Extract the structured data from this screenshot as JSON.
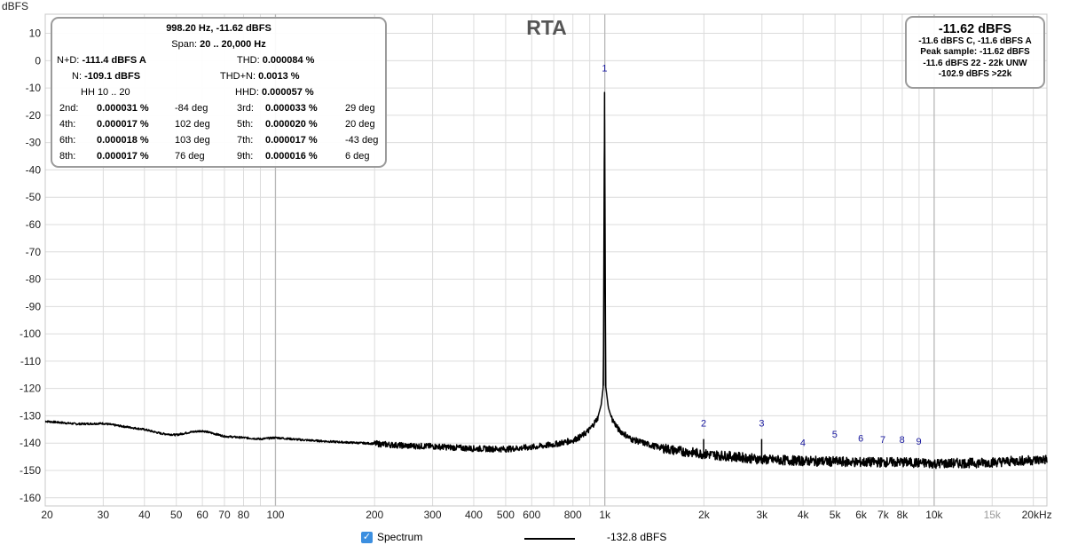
{
  "chart_data": {
    "type": "line",
    "title": "RTA",
    "ylabel": "dBFS",
    "xscale": "log",
    "xlim": [
      20,
      22000
    ],
    "ylim": [
      -163,
      17
    ],
    "grid": true,
    "y_ticks": [
      10,
      0,
      -10,
      -20,
      -30,
      -40,
      -50,
      -60,
      -70,
      -80,
      -90,
      -100,
      -110,
      -120,
      -130,
      -140,
      -150,
      -160
    ],
    "x_ticks": [
      {
        "v": 20,
        "label": "20"
      },
      {
        "v": 30,
        "label": "30"
      },
      {
        "v": 40,
        "label": "40"
      },
      {
        "v": 50,
        "label": "50"
      },
      {
        "v": 60,
        "label": "60"
      },
      {
        "v": 70,
        "label": "70"
      },
      {
        "v": 80,
        "label": "80"
      },
      {
        "v": 100,
        "label": "100"
      },
      {
        "v": 200,
        "label": "200"
      },
      {
        "v": 300,
        "label": "300"
      },
      {
        "v": 400,
        "label": "400"
      },
      {
        "v": 500,
        "label": "500"
      },
      {
        "v": 600,
        "label": "600"
      },
      {
        "v": 800,
        "label": "800"
      },
      {
        "v": 1000,
        "label": "1k"
      },
      {
        "v": 2000,
        "label": "2k"
      },
      {
        "v": 3000,
        "label": "3k"
      },
      {
        "v": 4000,
        "label": "4k"
      },
      {
        "v": 5000,
        "label": "5k"
      },
      {
        "v": 6000,
        "label": "6k"
      },
      {
        "v": 7000,
        "label": "7k"
      },
      {
        "v": 8000,
        "label": "8k"
      },
      {
        "v": 10000,
        "label": "10k"
      },
      {
        "v": 15000,
        "label": "15k",
        "minor": true
      },
      {
        "v": 20000,
        "label": "20kHz"
      }
    ],
    "minor_grid_x": [
      90,
      700,
      900,
      9000
    ],
    "major_grid_x": [
      100,
      1000,
      10000
    ],
    "series": [
      {
        "name": "Spectrum",
        "color": "#000000",
        "floor": [
          [
            20,
            -132
          ],
          [
            25,
            -133
          ],
          [
            30,
            -132.8
          ],
          [
            35,
            -134
          ],
          [
            40,
            -135
          ],
          [
            45,
            -136.5
          ],
          [
            50,
            -137
          ],
          [
            55,
            -136
          ],
          [
            60,
            -135.5
          ],
          [
            65,
            -136.5
          ],
          [
            70,
            -137.5
          ],
          [
            80,
            -138
          ],
          [
            90,
            -138.5
          ],
          [
            100,
            -138
          ],
          [
            120,
            -138.8
          ],
          [
            150,
            -139.5
          ],
          [
            200,
            -140.2
          ],
          [
            250,
            -141
          ],
          [
            300,
            -141.2
          ],
          [
            400,
            -142
          ],
          [
            500,
            -142.2
          ],
          [
            600,
            -141.5
          ],
          [
            700,
            -140.5
          ],
          [
            800,
            -139
          ],
          [
            850,
            -137.5
          ],
          [
            900,
            -135
          ],
          [
            950,
            -131
          ],
          [
            975,
            -126
          ],
          [
            990,
            -119
          ],
          [
            998.2,
            -11.62
          ],
          [
            1006,
            -119
          ],
          [
            1025,
            -127
          ],
          [
            1050,
            -131
          ],
          [
            1100,
            -135
          ],
          [
            1200,
            -138.5
          ],
          [
            1400,
            -141
          ],
          [
            1600,
            -142.5
          ],
          [
            2000,
            -144
          ],
          [
            2500,
            -145
          ],
          [
            3000,
            -146
          ],
          [
            4000,
            -146.5
          ],
          [
            6000,
            -147
          ],
          [
            8000,
            -147
          ],
          [
            10000,
            -147.5
          ],
          [
            14000,
            -147.2
          ],
          [
            18000,
            -146.5
          ],
          [
            22000,
            -146
          ]
        ],
        "harmonic_spurs": [
          [
            1996,
            -138.5
          ],
          [
            2994,
            -138.5
          ],
          [
            3993,
            -145.5
          ],
          [
            4991,
            -145.5
          ],
          [
            5989,
            -146.5
          ],
          [
            6987,
            -147
          ],
          [
            7986,
            -147.2
          ],
          [
            8984,
            -147.3
          ]
        ]
      }
    ],
    "harmonic_markers": [
      {
        "label": "1",
        "freq": 998.2,
        "db": -4
      },
      {
        "label": "2",
        "freq": 1996,
        "db": -134
      },
      {
        "label": "3",
        "freq": 2994,
        "db": -134
      },
      {
        "label": "4",
        "freq": 3993,
        "db": -141
      },
      {
        "label": "5",
        "freq": 4991,
        "db": -138
      },
      {
        "label": "6",
        "freq": 5989,
        "db": -139.5
      },
      {
        "label": "7",
        "freq": 6987,
        "db": -140
      },
      {
        "label": "8",
        "freq": 7986,
        "db": -140
      },
      {
        "label": "9",
        "freq": 8984,
        "db": -140.5
      }
    ]
  },
  "stats": {
    "header": "998.20 Hz, -11.62 dBFS",
    "span_label": "Span:",
    "span_value": "20 .. 20,000 Hz",
    "nd_label": "N+D:",
    "nd_value": "-111.4 dBFS A",
    "thd_label": "THD:",
    "thd_value": "0.000084 %",
    "n_label": "N:",
    "n_value": "-109.1 dBFS",
    "thdn_label": "THD+N:",
    "thdn_value": "0.0013 %",
    "hh_label": "HH 10 .. 20",
    "hhd_label": "HHD:",
    "hhd_value": "0.000057 %",
    "harmonics": [
      {
        "l1": "2nd:",
        "v1": "0.000031 %",
        "d1": "-84 deg",
        "l2": "3rd:",
        "v2": "0.000033 %",
        "d2": "29 deg"
      },
      {
        "l1": "4th:",
        "v1": "0.000017 %",
        "d1": "102 deg",
        "l2": "5th:",
        "v2": "0.000020 %",
        "d2": "20 deg"
      },
      {
        "l1": "6th:",
        "v1": "0.000018 %",
        "d1": "103 deg",
        "l2": "7th:",
        "v2": "0.000017 %",
        "d2": "-43 deg"
      },
      {
        "l1": "8th:",
        "v1": "0.000017 %",
        "d1": "76 deg",
        "l2": "9th:",
        "v2": "0.000016 %",
        "d2": "6 deg"
      }
    ]
  },
  "level_box": {
    "big": "-11.62 dBFS",
    "lines": [
      "-11.6 dBFS C, -11.6 dBFS A",
      "Peak sample: -11.62 dBFS",
      "-11.6 dBFS 22 - 22k UNW",
      "-102.9 dBFS >22k"
    ]
  },
  "legend": {
    "checkbox_checked": true,
    "checkbox_label": "Spectrum",
    "value": "-132.8 dBFS",
    "checkbox_color": "#3c8fe0"
  }
}
